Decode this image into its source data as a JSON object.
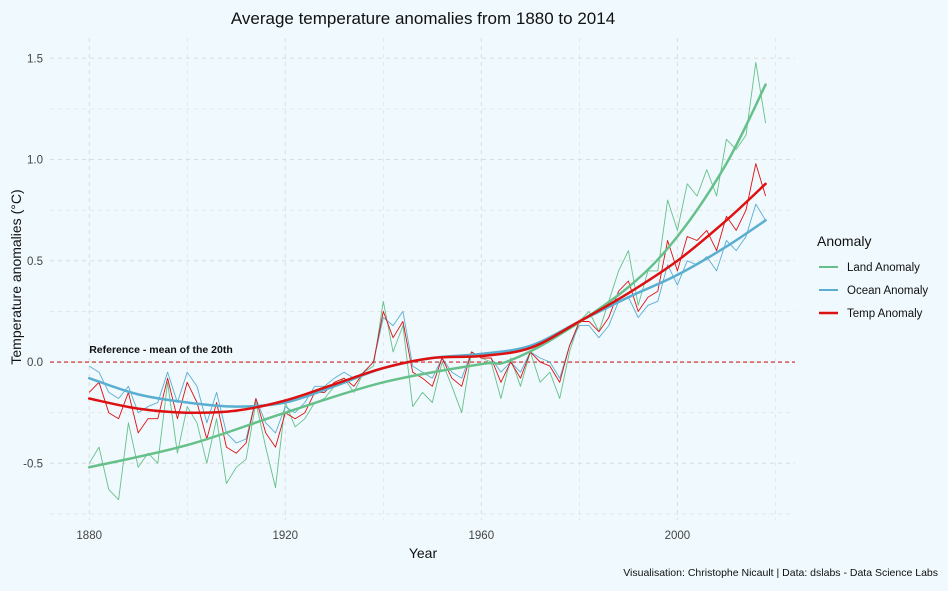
{
  "chart_data": {
    "type": "line",
    "title": "Average temperature anomalies from 1880 to 2014",
    "xlabel": "Year",
    "ylabel": "Temperature anomalies (°C)",
    "xlim": [
      1872,
      2024
    ],
    "ylim": [
      -0.78,
      1.6
    ],
    "x_ticks": [
      1880,
      1920,
      1960,
      2000
    ],
    "y_ticks": [
      -0.5,
      0.0,
      0.5,
      1.0,
      1.5
    ],
    "y_tick_labels": [
      "-0.5",
      "0.0",
      "0.5",
      "1.0",
      "1.5"
    ],
    "grid": true,
    "legend": {
      "title": "Anomaly",
      "placement": "right",
      "entries": [
        "Land Anomaly",
        "Ocean Anomaly",
        "Temp Anomaly"
      ]
    },
    "reference_line": {
      "y": 0.0,
      "label": "Reference - mean of the 20th",
      "color": "#cc2222"
    },
    "caption": "Visualisation: Christophe Nicault | Data: dslabs - Data Science Labs",
    "x": [
      1880,
      1882,
      1884,
      1886,
      1888,
      1890,
      1892,
      1894,
      1896,
      1898,
      1900,
      1902,
      1904,
      1906,
      1908,
      1910,
      1912,
      1914,
      1916,
      1918,
      1920,
      1922,
      1924,
      1926,
      1928,
      1930,
      1932,
      1934,
      1936,
      1938,
      1940,
      1942,
      1944,
      1946,
      1948,
      1950,
      1952,
      1954,
      1956,
      1958,
      1960,
      1962,
      1964,
      1966,
      1968,
      1970,
      1972,
      1974,
      1976,
      1978,
      1980,
      1982,
      1984,
      1986,
      1988,
      1990,
      1992,
      1994,
      1996,
      1998,
      2000,
      2002,
      2004,
      2006,
      2008,
      2010,
      2012,
      2014,
      2016,
      2018
    ],
    "series": [
      {
        "name": "Land Anomaly",
        "color": "#66c08a",
        "values": [
          -0.5,
          -0.42,
          -0.63,
          -0.68,
          -0.3,
          -0.52,
          -0.45,
          -0.5,
          -0.1,
          -0.45,
          -0.22,
          -0.3,
          -0.5,
          -0.28,
          -0.6,
          -0.52,
          -0.48,
          -0.2,
          -0.42,
          -0.62,
          -0.2,
          -0.32,
          -0.28,
          -0.2,
          -0.18,
          -0.12,
          -0.08,
          -0.15,
          -0.05,
          -0.02,
          0.3,
          0.05,
          0.18,
          -0.22,
          -0.15,
          -0.2,
          0.0,
          -0.12,
          -0.25,
          0.05,
          0.02,
          0.0,
          -0.18,
          0.02,
          -0.12,
          0.05,
          -0.1,
          -0.05,
          -0.18,
          0.05,
          0.2,
          0.25,
          0.15,
          0.3,
          0.45,
          0.55,
          0.28,
          0.45,
          0.45,
          0.8,
          0.65,
          0.88,
          0.82,
          0.95,
          0.82,
          1.1,
          1.05,
          1.12,
          1.48,
          1.18
        ]
      },
      {
        "name": "Ocean Anomaly",
        "color": "#5aaed0",
        "values": [
          -0.02,
          -0.05,
          -0.15,
          -0.18,
          -0.12,
          -0.25,
          -0.22,
          -0.2,
          -0.05,
          -0.2,
          -0.05,
          -0.12,
          -0.3,
          -0.15,
          -0.35,
          -0.4,
          -0.38,
          -0.18,
          -0.3,
          -0.35,
          -0.22,
          -0.25,
          -0.2,
          -0.12,
          -0.12,
          -0.08,
          -0.05,
          -0.08,
          -0.05,
          0.0,
          0.22,
          0.18,
          0.25,
          -0.02,
          -0.05,
          -0.08,
          0.02,
          -0.05,
          -0.08,
          0.05,
          0.02,
          0.02,
          -0.05,
          0.0,
          -0.05,
          0.05,
          0.02,
          0.0,
          -0.08,
          0.08,
          0.18,
          0.18,
          0.12,
          0.18,
          0.3,
          0.32,
          0.22,
          0.28,
          0.3,
          0.48,
          0.38,
          0.5,
          0.48,
          0.52,
          0.45,
          0.6,
          0.55,
          0.62,
          0.78,
          0.7
        ]
      },
      {
        "name": "Temp Anomaly",
        "color": "#dd1111",
        "values": [
          -0.15,
          -0.1,
          -0.25,
          -0.28,
          -0.15,
          -0.35,
          -0.28,
          -0.28,
          -0.08,
          -0.28,
          -0.1,
          -0.2,
          -0.38,
          -0.2,
          -0.42,
          -0.45,
          -0.4,
          -0.18,
          -0.35,
          -0.42,
          -0.25,
          -0.28,
          -0.25,
          -0.15,
          -0.15,
          -0.1,
          -0.08,
          -0.12,
          -0.05,
          0.0,
          0.25,
          0.12,
          0.2,
          -0.05,
          -0.08,
          -0.12,
          0.02,
          -0.08,
          -0.12,
          0.05,
          0.02,
          0.02,
          -0.1,
          0.0,
          -0.08,
          0.05,
          0.0,
          -0.02,
          -0.1,
          0.08,
          0.2,
          0.2,
          0.15,
          0.22,
          0.35,
          0.4,
          0.25,
          0.32,
          0.35,
          0.6,
          0.45,
          0.62,
          0.6,
          0.65,
          0.55,
          0.72,
          0.65,
          0.75,
          0.98,
          0.82
        ]
      }
    ],
    "trend_lines": [
      {
        "name": "Land Anomaly",
        "color": "#66c08a",
        "x": [
          1880,
          1900,
          1920,
          1940,
          1960,
          1965,
          1975,
          1990,
          2000,
          2010,
          2018
        ],
        "y": [
          -0.52,
          -0.41,
          -0.25,
          -0.1,
          -0.01,
          0.0,
          0.12,
          0.37,
          0.62,
          0.98,
          1.37
        ]
      },
      {
        "name": "Ocean Anomaly",
        "color": "#5aaed0",
        "x": [
          1880,
          1890,
          1900,
          1910,
          1920,
          1930,
          1940,
          1950,
          1960,
          1970,
          1980,
          1990,
          2000,
          2010,
          2018
        ],
        "y": [
          -0.08,
          -0.16,
          -0.2,
          -0.22,
          -0.2,
          -0.12,
          -0.03,
          0.02,
          0.04,
          0.08,
          0.2,
          0.32,
          0.43,
          0.57,
          0.7
        ]
      },
      {
        "name": "Temp Anomaly",
        "color": "#dd1111",
        "x": [
          1880,
          1890,
          1900,
          1910,
          1920,
          1930,
          1940,
          1950,
          1960,
          1970,
          1980,
          1990,
          2000,
          2010,
          2018
        ],
        "y": [
          -0.18,
          -0.23,
          -0.25,
          -0.24,
          -0.19,
          -0.11,
          -0.03,
          0.02,
          0.03,
          0.07,
          0.2,
          0.34,
          0.5,
          0.7,
          0.88
        ]
      }
    ]
  }
}
